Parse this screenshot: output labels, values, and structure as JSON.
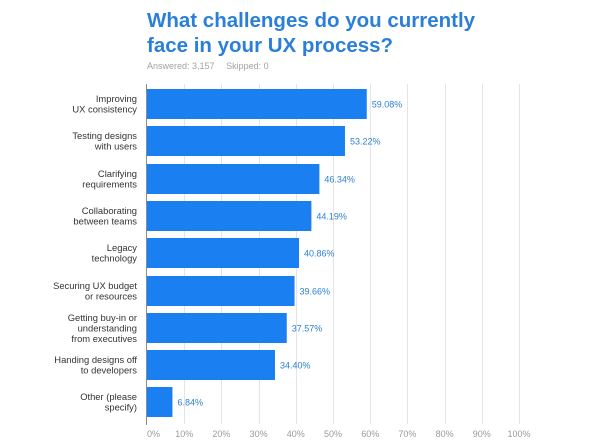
{
  "header": {
    "title_line1": "What challenges do you currently",
    "title_line2": "face in your UX process?",
    "answered": "Answered: 3,157",
    "skipped": "Skipped: 0"
  },
  "chart_data": {
    "type": "bar",
    "orientation": "horizontal",
    "title": "What challenges do you currently face in your UX process?",
    "categories": [
      [
        "Improving",
        "UX consistency"
      ],
      [
        "Testing designs",
        "with users"
      ],
      [
        "Clarifying",
        "requirements"
      ],
      [
        "Collaborating",
        "between teams"
      ],
      [
        "Legacy",
        "technology"
      ],
      [
        "Securing UX budget",
        "or resources"
      ],
      [
        "Getting buy-in or",
        "understanding",
        "from executives"
      ],
      [
        "Handing designs off",
        "to developers"
      ],
      [
        "Other (please",
        "specify)"
      ]
    ],
    "values": [
      59.08,
      53.22,
      46.34,
      44.19,
      40.86,
      39.66,
      37.57,
      34.4,
      6.84
    ],
    "value_labels": [
      "59.08%",
      "53.22%",
      "46.34%",
      "44.19%",
      "40.86%",
      "39.66%",
      "37.57%",
      "34.40%",
      "6.84%"
    ],
    "xlim": [
      0,
      100
    ],
    "xticks": [
      0,
      10,
      20,
      30,
      40,
      50,
      60,
      70,
      80,
      90,
      100
    ],
    "xtick_labels": [
      "0%",
      "10%",
      "20%",
      "30%",
      "40%",
      "50%",
      "60%",
      "70%",
      "80%",
      "90%",
      "100%"
    ],
    "grid": true,
    "colors": {
      "bar": "#1a7ff0",
      "value_label": "#2a7fd9",
      "grid": "#e4e4e4",
      "title": "#2a7fd9"
    }
  }
}
